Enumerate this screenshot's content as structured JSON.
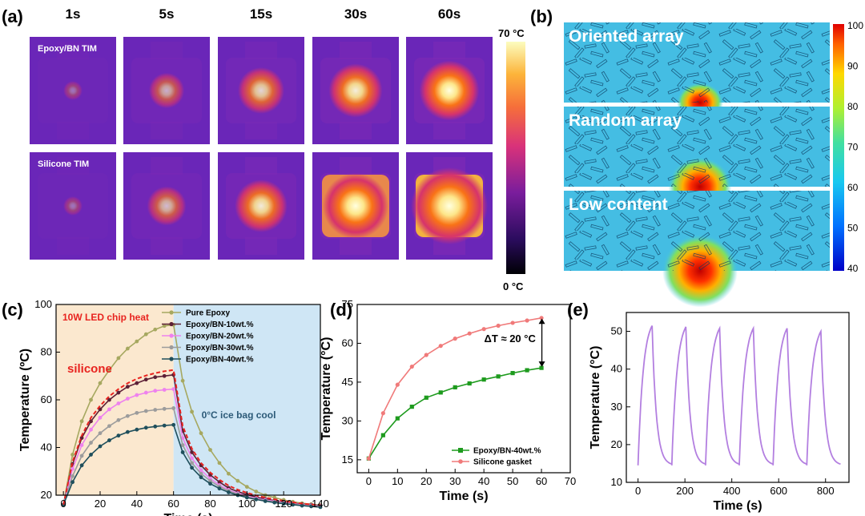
{
  "panel_labels": [
    "(a)",
    "(b)",
    "(c)",
    "(d)",
    "(e)"
  ],
  "thermal": {
    "times": [
      "1s",
      "5s",
      "15s",
      "30s",
      "60s"
    ],
    "rows": [
      "Epoxy/BN TIM",
      "Silicone TIM"
    ],
    "hot_intensity": [
      [
        0.05,
        0.32,
        0.5,
        0.62,
        0.72
      ],
      [
        0.05,
        0.38,
        0.6,
        0.82,
        1.0
      ]
    ],
    "colorbar_max": "70 °C",
    "colorbar_min": "0 °C"
  },
  "simulation": {
    "titles": [
      "Oriented array",
      "Random array",
      "Low content"
    ],
    "hotspot_size": [
      0.5,
      0.85,
      1.1
    ],
    "colorbar_ticks": [
      "100",
      "90",
      "80",
      "70",
      "60",
      "50",
      "40"
    ]
  },
  "annotations": {
    "c_heat": "10W LED chip heat",
    "c_cool": "0°C ice bag cool",
    "c_silicone": "silicone",
    "d_delta": "ΔT ≈ 20 °C"
  },
  "chart_data": [
    {
      "type": "line",
      "panel": "(c)",
      "xlabel": "Time (s)",
      "ylabel": "Temperature (ºC)",
      "xlim": [
        -4,
        140
      ],
      "ylim": [
        20,
        100
      ],
      "xticks": [
        "0",
        "20",
        "40",
        "60",
        "80",
        "100",
        "120",
        "140"
      ],
      "yticks": [
        "20",
        "40",
        "60",
        "80",
        "100"
      ],
      "regions": [
        {
          "label": "10W LED chip heat",
          "x": [
            -4,
            60
          ],
          "color": "#fbe8cf"
        },
        {
          "label": "0°C ice bag cool",
          "x": [
            60,
            140
          ],
          "color": "#cfe6f5"
        }
      ],
      "legend": "top-center",
      "series": [
        {
          "name": "Pure Epoxy",
          "color": "#a6a860",
          "marker": "circle",
          "x": [
            0,
            5,
            10,
            15,
            20,
            25,
            30,
            35,
            40,
            45,
            50,
            55,
            60,
            65,
            70,
            75,
            80,
            85,
            90,
            95,
            100,
            105,
            110,
            115,
            120,
            125,
            130,
            135,
            140
          ],
          "y": [
            16,
            37,
            51,
            60,
            67,
            72.5,
            77.5,
            81.5,
            84.5,
            87.5,
            89.5,
            91,
            91.5,
            68,
            55,
            46,
            39,
            33.5,
            29,
            26,
            23.5,
            21.5,
            20,
            19,
            18,
            17.2,
            16.6,
            16.2,
            15.8
          ]
        },
        {
          "name": "Epoxy/BN-10wt.%",
          "color": "#5c1f36",
          "marker": "circle",
          "x": [
            0,
            5,
            10,
            15,
            20,
            25,
            30,
            35,
            40,
            45,
            50,
            55,
            60,
            65,
            70,
            75,
            80,
            85,
            90,
            95,
            100,
            105,
            110,
            115,
            120,
            125,
            130,
            135,
            140
          ],
          "y": [
            16,
            33,
            44,
            51,
            56,
            60,
            63,
            65.5,
            67,
            68.5,
            69.5,
            70,
            70.5,
            47,
            38,
            32.5,
            28.5,
            25.5,
            23,
            21.5,
            20.2,
            19.2,
            18.4,
            17.7,
            17.1,
            16.6,
            16.2,
            15.9,
            15.6
          ]
        },
        {
          "name": "Epoxy/BN-20wt.%",
          "color": "#ee82ee",
          "marker": "circle",
          "x": [
            0,
            5,
            10,
            15,
            20,
            25,
            30,
            35,
            40,
            45,
            50,
            55,
            60,
            65,
            70,
            75,
            80,
            85,
            90,
            95,
            100,
            105,
            110,
            115,
            120,
            125,
            130,
            135,
            140
          ],
          "y": [
            16,
            31,
            41,
            47.5,
            52.5,
            56,
            58.5,
            60.5,
            62,
            63,
            63.8,
            64.2,
            64.5,
            44,
            35.5,
            30.5,
            27,
            24.2,
            22.2,
            20.8,
            19.6,
            18.7,
            18,
            17.4,
            16.9,
            16.4,
            16,
            15.7,
            15.4
          ]
        },
        {
          "name": "Epoxy/BN-30wt.%",
          "color": "#9c9c9c",
          "marker": "circle",
          "x": [
            0,
            5,
            10,
            15,
            20,
            25,
            30,
            35,
            40,
            45,
            50,
            55,
            60,
            65,
            70,
            75,
            80,
            85,
            90,
            95,
            100,
            105,
            110,
            115,
            120,
            125,
            130,
            135,
            140
          ],
          "y": [
            16,
            28,
            36.5,
            42,
            46,
            49,
            51.5,
            53.2,
            54.5,
            55.3,
            55.8,
            56.2,
            56.5,
            41,
            33.5,
            29,
            26,
            23.6,
            21.8,
            20.4,
            19.3,
            18.4,
            17.7,
            17.1,
            16.6,
            16.2,
            15.8,
            15.5,
            15.2
          ]
        },
        {
          "name": "Epoxy/BN-40wt.%",
          "color": "#1f4f5c",
          "marker": "circle",
          "x": [
            0,
            5,
            10,
            15,
            20,
            25,
            30,
            35,
            40,
            45,
            50,
            55,
            60,
            65,
            70,
            75,
            80,
            85,
            90,
            95,
            100,
            105,
            110,
            115,
            120,
            125,
            130,
            135,
            140
          ],
          "y": [
            16,
            25.5,
            32.5,
            37,
            40.5,
            43,
            45,
            46.5,
            47.5,
            48.3,
            48.8,
            49.2,
            49.5,
            38,
            31.5,
            27.5,
            24.8,
            22.8,
            21.2,
            20,
            19,
            18.2,
            17.5,
            16.9,
            16.4,
            16,
            15.6,
            15.3,
            15
          ]
        },
        {
          "name": "silicone",
          "color": "#e8231f",
          "marker": "none",
          "dashed": true,
          "x": [
            0,
            5,
            10,
            15,
            20,
            25,
            30,
            35,
            40,
            45,
            50,
            55,
            60,
            65,
            70,
            75,
            80,
            85,
            90,
            95,
            100,
            105,
            110,
            115,
            120,
            125,
            130,
            135,
            140
          ],
          "y": [
            16,
            34,
            45,
            52.5,
            57.5,
            61.5,
            64.5,
            67,
            68.8,
            70.2,
            71.2,
            72,
            72.5,
            49,
            39.5,
            33.5,
            29.5,
            26.5,
            24,
            22.3,
            21,
            19.9,
            19,
            18.3,
            17.6,
            17,
            16.5,
            16.1,
            15.8
          ]
        }
      ]
    },
    {
      "type": "line",
      "panel": "(d)",
      "xlabel": "Time (s)",
      "ylabel": "Temperature (°C)",
      "xlim": [
        -4,
        70
      ],
      "ylim": [
        10,
        75
      ],
      "xticks": [
        "0",
        "10",
        "20",
        "30",
        "40",
        "50",
        "60",
        "70"
      ],
      "yticks": [
        "15",
        "30",
        "45",
        "60",
        "75"
      ],
      "legend": "bottom-right",
      "series": [
        {
          "name": "Epoxy/BN-40wt.%",
          "color": "#1e9b1e",
          "marker": "square",
          "x": [
            0,
            5,
            10,
            15,
            20,
            25,
            30,
            35,
            40,
            45,
            50,
            55,
            60
          ],
          "y": [
            15.5,
            24.5,
            31,
            35.5,
            39,
            41,
            43,
            44.5,
            46,
            47.2,
            48.5,
            49.6,
            50.5
          ]
        },
        {
          "name": "Silicone gasket",
          "color": "#f07a7a",
          "marker": "circle",
          "x": [
            0,
            5,
            10,
            15,
            20,
            25,
            30,
            35,
            40,
            45,
            50,
            55,
            60
          ],
          "y": [
            15.5,
            33,
            44,
            51,
            55.5,
            59,
            61.8,
            63.8,
            65.5,
            66.8,
            67.9,
            68.8,
            69.8
          ]
        }
      ]
    },
    {
      "type": "line",
      "panel": "(e)",
      "xlabel": "Time (s)",
      "ylabel": "Temperature (°C)",
      "xlim": [
        -50,
        900
      ],
      "ylim": [
        10,
        55
      ],
      "xticks": [
        "0",
        "200",
        "400",
        "600",
        "800"
      ],
      "yticks": [
        "10",
        "20",
        "30",
        "40",
        "50"
      ],
      "series": [
        {
          "name": "",
          "color": "#b37fe0",
          "marker": "none",
          "cycles": 6,
          "period": 144,
          "start": 0,
          "t_heat": 60,
          "peaks": [
            51.5,
            51.2,
            50.8,
            50.8,
            50.8,
            50
          ],
          "base": 14.5
        }
      ]
    }
  ]
}
